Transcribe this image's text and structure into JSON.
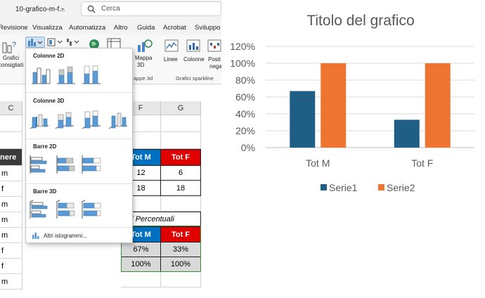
{
  "titlebar": {
    "file_name": "10-grafico-m-f...",
    "search_placeholder": "Cerca"
  },
  "menu": [
    "Revisione",
    "Visualizza",
    "Automatizza",
    "Altro",
    "Guida",
    "Acrobat",
    "Sviluppo"
  ],
  "ribbon": {
    "grafici_line1": "Grafici",
    "grafici_line2": "consigliati",
    "mappa_line1": "Mappa",
    "mappa_line2": "3D",
    "mappe_group": "appe 3d",
    "linee": "Linee",
    "colonne": "Colonne",
    "posit_line1": "Posit",
    "posit_line2": "nega",
    "sparkline_group": "Grafici sparkline"
  },
  "dropdown": {
    "sections": [
      "Colonne 2D",
      "Colonne 3D",
      "Barre 2D",
      "Barre 3D"
    ],
    "more": "Altri istogrammi..."
  },
  "sheet": {
    "col_c": "C",
    "col_f": "F",
    "col_g": "G",
    "header_fragment": "nere",
    "rows": [
      "m",
      "f",
      "m",
      "m",
      "m",
      "f",
      "f",
      "m"
    ],
    "tot_m": "Tot M",
    "tot_f": "Tot F",
    "counts_row1": [
      "12",
      "6"
    ],
    "counts_row2": [
      "18",
      "18"
    ],
    "percent_title": "lori Percentuali",
    "pct_row1": [
      "67%",
      "33%"
    ],
    "pct_row2": [
      "100%",
      "100%"
    ]
  },
  "colors": {
    "serie1": "#1f5f86",
    "serie2": "#ed7431",
    "tot_m_bg": "#0070c0",
    "tot_f_bg": "#e00000"
  },
  "chart_data": {
    "type": "bar",
    "title": "Titolo del grafico",
    "categories": [
      "Tot M",
      "Tot F"
    ],
    "series": [
      {
        "name": "Serie1",
        "values": [
          0.67,
          0.33
        ]
      },
      {
        "name": "Serie2",
        "values": [
          1.0,
          1.0
        ]
      }
    ],
    "ylim": [
      0,
      1.2
    ],
    "yticks": [
      "0%",
      "20%",
      "40%",
      "60%",
      "80%",
      "100%",
      "120%"
    ],
    "grid": true,
    "legend": "bottom"
  }
}
